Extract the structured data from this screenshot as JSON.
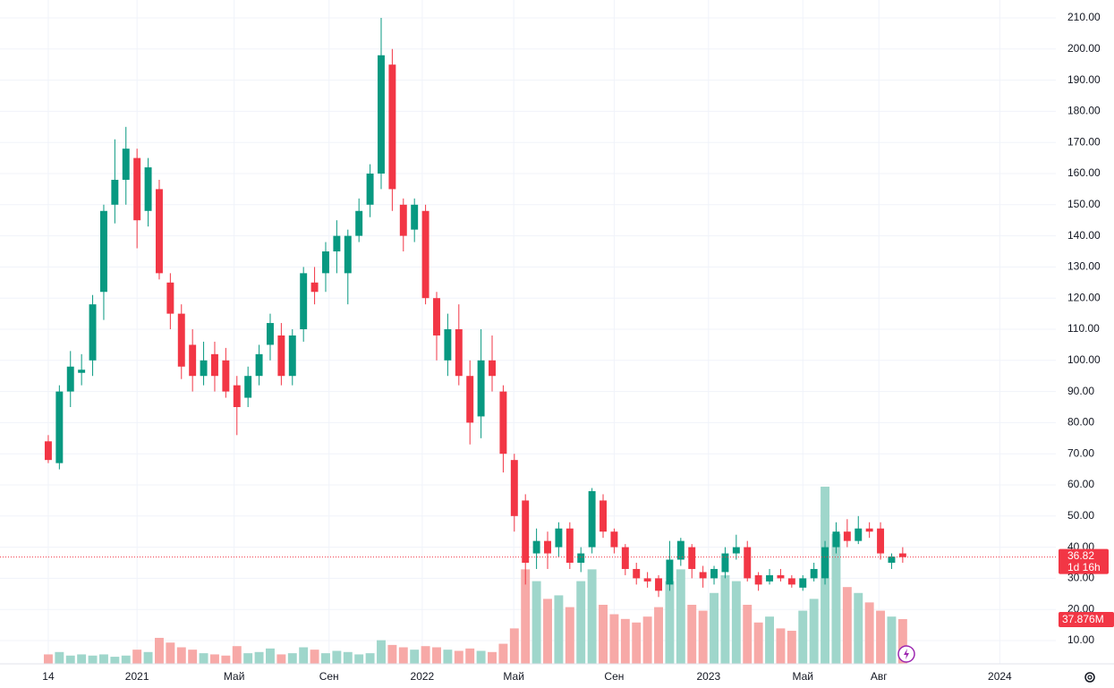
{
  "chart_data": {
    "type": "candlestick",
    "x": [
      0,
      2,
      4,
      6,
      8,
      10,
      12,
      14,
      16,
      18,
      20,
      22,
      24,
      26,
      28,
      30,
      32,
      34,
      36,
      38,
      40,
      42,
      44,
      46,
      48,
      50,
      52,
      54,
      56,
      58,
      60,
      62,
      64,
      66,
      68,
      70,
      72,
      74,
      76,
      78,
      80,
      82,
      84,
      86,
      88,
      90,
      92,
      94,
      96,
      98,
      100,
      102,
      104,
      106,
      108,
      110,
      112,
      114,
      116,
      118,
      120,
      122,
      124,
      126,
      128,
      130,
      132,
      134,
      136,
      138,
      140,
      142,
      144,
      146,
      148,
      150,
      152,
      154
    ],
    "open": [
      74,
      67,
      90,
      96,
      100,
      122,
      150,
      158,
      165,
      148,
      155,
      125,
      115,
      105,
      95,
      102,
      100,
      92,
      88,
      95,
      105,
      108,
      95,
      110,
      125,
      128,
      135,
      128,
      140,
      150,
      160,
      195,
      150,
      142,
      148,
      120,
      100,
      110,
      95,
      82,
      100,
      90,
      68,
      55,
      38,
      42,
      40,
      46,
      35,
      40,
      55,
      45,
      40,
      33,
      30,
      30,
      28,
      36,
      40,
      32,
      30,
      32,
      38,
      40,
      31,
      29,
      31,
      30,
      27,
      30,
      30,
      40,
      45,
      42,
      46,
      46,
      35,
      38
    ],
    "high": [
      76,
      92,
      103,
      102,
      121,
      150,
      171,
      175,
      168,
      165,
      158,
      128,
      118,
      110,
      106,
      106,
      104,
      95,
      98,
      105,
      115,
      112,
      110,
      130,
      130,
      138,
      145,
      142,
      152,
      163,
      210,
      200,
      152,
      152,
      150,
      122,
      115,
      118,
      100,
      110,
      108,
      92,
      70,
      57,
      46,
      45,
      48,
      48,
      40,
      59,
      57,
      46,
      41,
      35,
      32,
      31,
      42,
      43,
      41,
      34,
      34,
      40,
      44,
      42,
      32,
      33,
      33,
      31,
      31,
      35,
      42,
      48,
      49,
      50,
      48,
      48,
      38,
      40
    ],
    "low": [
      67,
      65,
      85,
      92,
      95,
      113,
      144,
      150,
      136,
      143,
      126,
      110,
      94,
      90,
      92,
      90,
      88,
      76,
      85,
      92,
      100,
      92,
      92,
      106,
      118,
      122,
      128,
      118,
      138,
      146,
      155,
      148,
      135,
      138,
      118,
      100,
      95,
      92,
      73,
      75,
      90,
      64,
      45,
      28,
      33,
      33,
      37,
      33,
      32,
      38,
      43,
      38,
      31,
      28,
      27,
      24,
      26,
      34,
      30,
      27,
      28,
      30,
      36,
      29,
      26,
      28,
      29,
      27,
      26,
      29,
      28,
      38,
      40,
      41,
      43,
      36,
      33,
      35
    ],
    "close": [
      68,
      90,
      98,
      97,
      118,
      148,
      158,
      168,
      145,
      162,
      128,
      115,
      98,
      95,
      100,
      95,
      90,
      85,
      95,
      102,
      112,
      95,
      108,
      128,
      122,
      135,
      140,
      140,
      148,
      160,
      198,
      155,
      140,
      150,
      120,
      108,
      110,
      95,
      80,
      100,
      95,
      70,
      50,
      35,
      42,
      38,
      46,
      35,
      38,
      58,
      45,
      40,
      33,
      30,
      29,
      26,
      36,
      42,
      33,
      30,
      33,
      38,
      40,
      30,
      28,
      31,
      30,
      28,
      30,
      33,
      40,
      45,
      42,
      46,
      45,
      38,
      37,
      36.82
    ],
    "volume": [
      8,
      10,
      7,
      8,
      7,
      8,
      6,
      7,
      12,
      10,
      22,
      18,
      14,
      12,
      9,
      8,
      7,
      15,
      9,
      10,
      13,
      8,
      9,
      14,
      12,
      9,
      11,
      10,
      8,
      9,
      20,
      16,
      14,
      12,
      15,
      14,
      12,
      11,
      13,
      11,
      10,
      17,
      30,
      80,
      70,
      55,
      58,
      48,
      70,
      80,
      50,
      42,
      38,
      35,
      40,
      48,
      70,
      80,
      50,
      45,
      60,
      75,
      70,
      50,
      35,
      40,
      30,
      28,
      45,
      55,
      150,
      110,
      65,
      60,
      52,
      45,
      40,
      37.876
    ],
    "volume_label": "37.876M",
    "countdown": "1d 16h",
    "xlim": [
      -8.7,
      181.6
    ],
    "xticks": [
      {
        "value": 0,
        "label": "14"
      },
      {
        "value": 16,
        "label": "2021"
      },
      {
        "value": 33.5,
        "label": "Май"
      },
      {
        "value": 50.6,
        "label": "Сен"
      },
      {
        "value": 67.4,
        "label": "2022"
      },
      {
        "value": 83.9,
        "label": "Май"
      },
      {
        "value": 102,
        "label": "Сен"
      },
      {
        "value": 119,
        "label": "2023"
      },
      {
        "value": 136,
        "label": "Май"
      },
      {
        "value": 149.7,
        "label": "Авг"
      },
      {
        "value": 171.5,
        "label": "2024"
      }
    ],
    "ylim": [
      2.53,
      215.75
    ],
    "yticks": [
      {
        "value": 10,
        "label": "10.00"
      },
      {
        "value": 20,
        "label": "20.00"
      },
      {
        "value": 30,
        "label": "30.00"
      },
      {
        "value": 40,
        "label": "40.00"
      },
      {
        "value": 50,
        "label": "50.00"
      },
      {
        "value": 60,
        "label": "60.00"
      },
      {
        "value": 70,
        "label": "70.00"
      },
      {
        "value": 80,
        "label": "80.00"
      },
      {
        "value": 90,
        "label": "90.00"
      },
      {
        "value": 100,
        "label": "100.00"
      },
      {
        "value": 110,
        "label": "110.00"
      },
      {
        "value": 120,
        "label": "120.00"
      },
      {
        "value": 130,
        "label": "130.00"
      },
      {
        "value": 140,
        "label": "140.00"
      },
      {
        "value": 150,
        "label": "150.00"
      },
      {
        "value": 160,
        "label": "160.00"
      },
      {
        "value": 170,
        "label": "170.00"
      },
      {
        "value": 180,
        "label": "180.00"
      },
      {
        "value": 190,
        "label": "190.00"
      },
      {
        "value": 200,
        "label": "200.00"
      },
      {
        "value": 210,
        "label": "210.00"
      }
    ],
    "vlim": [
      0,
      562
    ],
    "grid": true,
    "up_color": "#089981",
    "down_color": "#f23645",
    "up_volume_color": "#9fd6cb",
    "down_volume_color": "#f7a9a7"
  }
}
